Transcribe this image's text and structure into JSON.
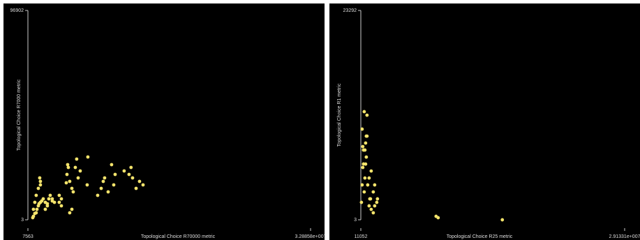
{
  "chart_data": [
    {
      "type": "scatter",
      "x_label": "Topological Choice R70000 metric",
      "y_label": "Topological Choice R7000 metric",
      "color": "#f3e36b",
      "xlim": [
        7563,
        32885800
      ],
      "ylim": [
        3,
        96902
      ],
      "xticks": [
        7563,
        {
          "value": 32885800,
          "label": "3.28858e+007"
        }
      ],
      "yticks": [
        3,
        96902
      ],
      "x": [
        570000,
        650000,
        810000,
        970000,
        1060000,
        1220000,
        1300000,
        1460000,
        1620000,
        1790000,
        2030000,
        2270000,
        2440000,
        2600000,
        2840000,
        3090000,
        650000,
        810000,
        970000,
        1220000,
        1460000,
        2030000,
        2270000,
        3650000,
        3900000,
        4470000,
        4550000,
        4630000,
        4710000,
        4870000,
        5120000,
        5280000,
        5520000,
        5680000,
        5850000,
        6090000,
        6900000,
        6980000,
        8120000,
        8530000,
        8770000,
        8930000,
        9340000,
        9740000,
        9990000,
        10150000,
        11200000,
        11770000,
        12000000,
        12180000,
        12590000,
        12990000,
        13400000,
        4870000,
        5120000,
        3650000,
        1460000,
        1380000,
        2840000,
        3900000
      ],
      "values": [
        969,
        1615,
        2907,
        3230,
        4845,
        6460,
        7429,
        8075,
        8721,
        9690,
        8075,
        7429,
        9690,
        11305,
        9690,
        8075,
        4845,
        8075,
        11305,
        14535,
        16150,
        4845,
        6460,
        8075,
        9690,
        17119,
        20995,
        25517,
        24225,
        17765,
        14535,
        12920,
        24225,
        28101,
        19380,
        22610,
        16150,
        29070,
        11305,
        14535,
        17765,
        19380,
        12920,
        25517,
        16150,
        21000,
        22610,
        20995,
        24225,
        19380,
        14535,
        17765,
        16150,
        3230,
        4845,
        11305,
        17765,
        19380,
        8721,
        6460
      ]
    },
    {
      "type": "scatter",
      "x_label": "Topological Choice R25 metric",
      "y_label": "Topological Choice R1 metric",
      "color": "#f3e36b",
      "xlim": [
        11052,
        29133100
      ],
      "ylim": [
        3,
        23292
      ],
      "xticks": [
        11052,
        {
          "value": 29133100,
          "label": "2.91331e+007"
        }
      ],
      "yticks": [
        3,
        23292
      ],
      "x": [
        77000,
        154000,
        231000,
        308000,
        385000,
        462000,
        539000,
        616000,
        693000,
        770000,
        231000,
        154000,
        385000,
        462000,
        616000,
        924000,
        1001000,
        1155000,
        1386000,
        1540000,
        1771000,
        1848000,
        1078000,
        1386000,
        1540000,
        8316000,
        8547000,
        15631000,
        924000,
        1155000,
        308000,
        539000,
        693000
      ],
      "values": [
        1940,
        3880,
        5820,
        7760,
        3100,
        4650,
        6200,
        9310,
        11640,
        3880,
        8150,
        10090,
        12030,
        7760,
        6980,
        1550,
        2330,
        1160,
        780,
        1550,
        1940,
        2330,
        2330,
        3100,
        3880,
        390,
        230,
        0,
        4650,
        5430,
        6210,
        8540,
        9310
      ]
    }
  ]
}
